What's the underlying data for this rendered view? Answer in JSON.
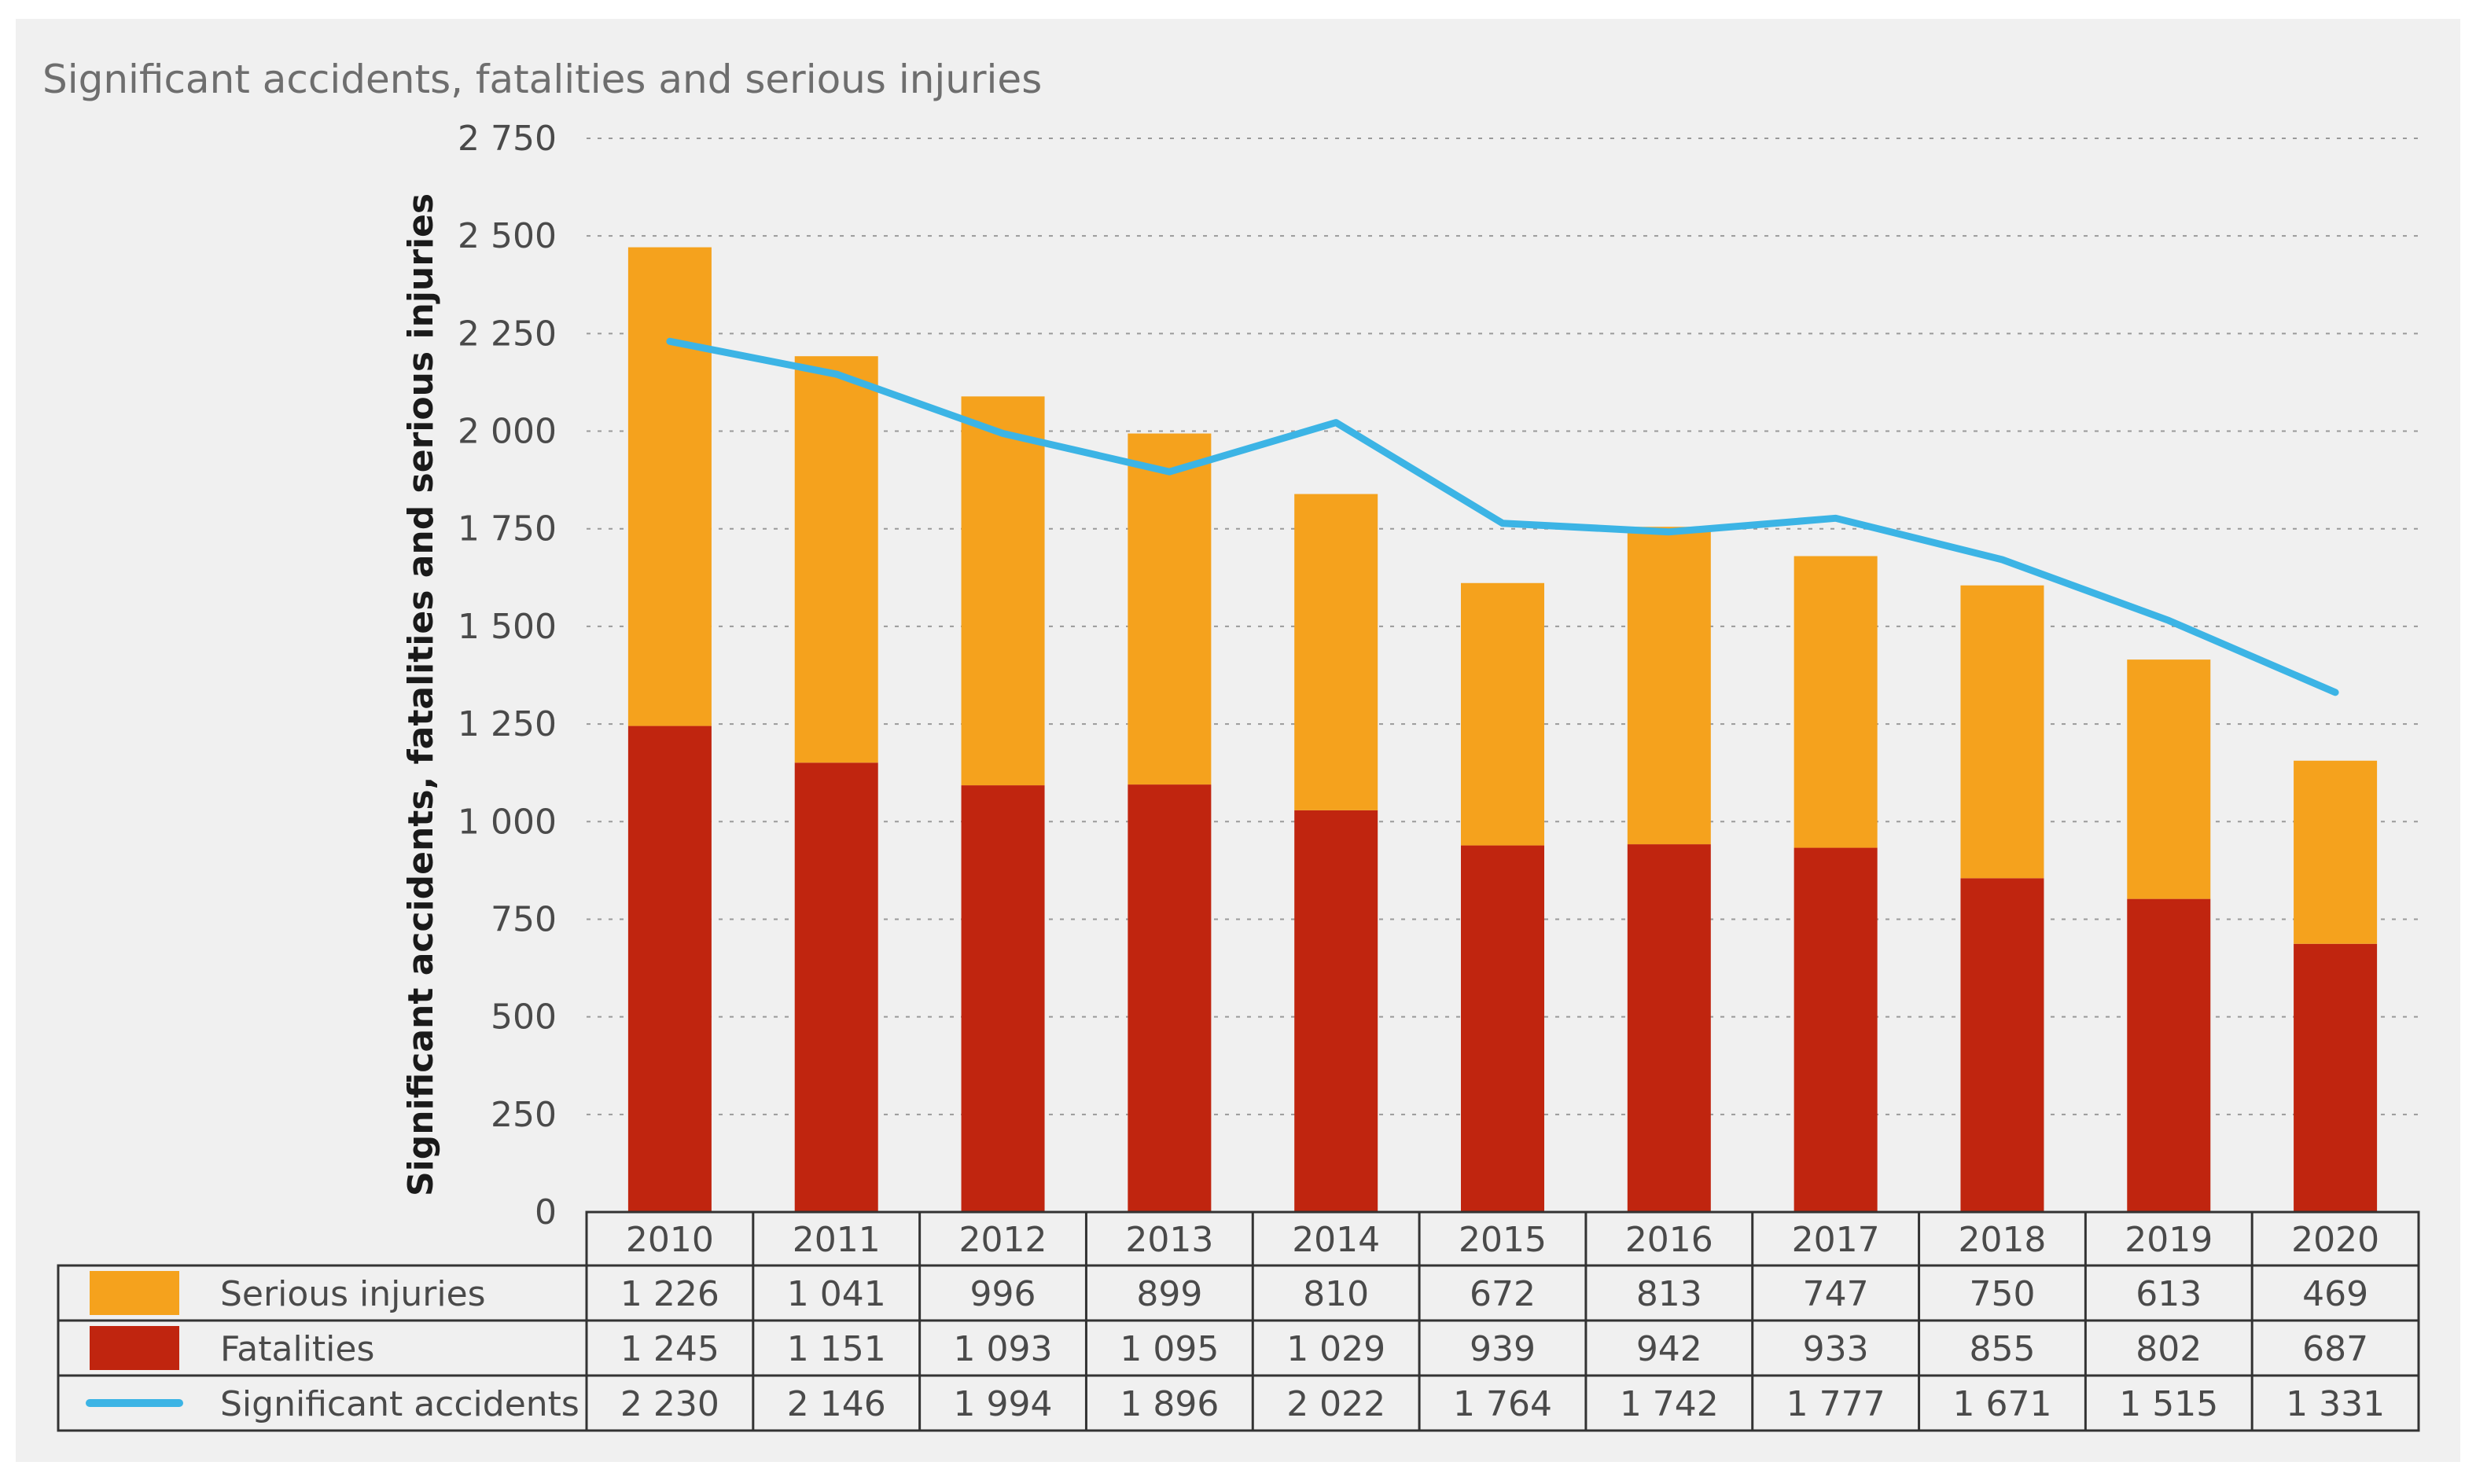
{
  "chart_data": {
    "type": "bar",
    "stacked": true,
    "title": "Significant accidents, fatalities and serious injuries",
    "ylabel": "Significant accidents, fatalities and serious injuries",
    "xlabel": "",
    "ylim": [
      0,
      2750
    ],
    "yticks": [
      0,
      250,
      500,
      750,
      1000,
      1250,
      1500,
      1750,
      2000,
      2250,
      2500,
      2750
    ],
    "ytick_labels": [
      "0",
      "250",
      "500",
      "750",
      "1 000",
      "1 250",
      "1 500",
      "1 750",
      "2 000",
      "2 250",
      "2 500",
      "2 750"
    ],
    "grid": true,
    "categories": [
      "2010",
      "2011",
      "2012",
      "2013",
      "2014",
      "2015",
      "2016",
      "2017",
      "2018",
      "2019",
      "2020"
    ],
    "series": [
      {
        "name": "Serious injuries",
        "kind": "bar",
        "color": "#f5a21d",
        "values": [
          1226,
          1041,
          996,
          899,
          810,
          672,
          813,
          747,
          750,
          613,
          469
        ],
        "labels": [
          "1 226",
          "1 041",
          "996",
          "899",
          "810",
          "672",
          "813",
          "747",
          "750",
          "613",
          "469"
        ]
      },
      {
        "name": "Fatalities",
        "kind": "bar",
        "color": "#c0250f",
        "values": [
          1245,
          1151,
          1093,
          1095,
          1029,
          939,
          942,
          933,
          855,
          802,
          687
        ],
        "labels": [
          "1 245",
          "1 151",
          "1 093",
          "1 095",
          "1 029",
          "939",
          "942",
          "933",
          "855",
          "802",
          "687"
        ]
      },
      {
        "name": "Significant accidents",
        "kind": "line",
        "color": "#3cb4e5",
        "values": [
          2230,
          2146,
          1994,
          1896,
          2022,
          1764,
          1742,
          1777,
          1671,
          1515,
          1331
        ],
        "labels": [
          "2 230",
          "2 146",
          "1 994",
          "1 896",
          "2 022",
          "1 764",
          "1 742",
          "1 777",
          "1 671",
          "1 515",
          "1 331"
        ]
      }
    ]
  }
}
